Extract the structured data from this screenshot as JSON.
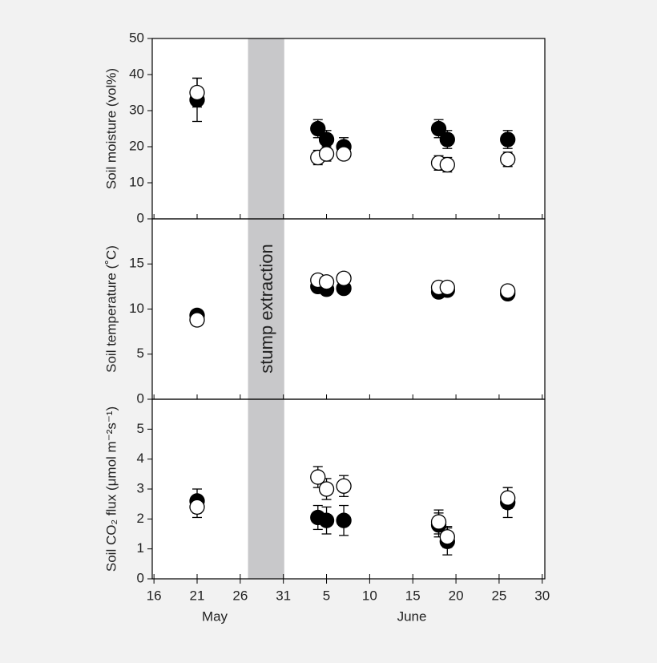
{
  "x_axis": {
    "xlim": [
      135.8,
      181.3
    ],
    "xticks": [
      {
        "value": 136,
        "label": "16"
      },
      {
        "value": 141,
        "label": "21"
      },
      {
        "value": 146,
        "label": "26"
      },
      {
        "value": 151,
        "label": "31"
      },
      {
        "value": 156,
        "label": "5"
      },
      {
        "value": 161,
        "label": "10"
      },
      {
        "value": 166,
        "label": "15"
      },
      {
        "value": 171,
        "label": "20"
      },
      {
        "value": 176,
        "label": "25"
      },
      {
        "value": 181,
        "label": "30"
      }
    ],
    "months": [
      "May",
      "June"
    ]
  },
  "annotation": {
    "text": "stump extraction",
    "span": [
      146.9,
      151.1
    ],
    "color": "#c8c8ca"
  },
  "chart_data": [
    {
      "type": "scatter",
      "ylabel": "Soil moisture (vol%)",
      "ylim": [
        0,
        50
      ],
      "yticks": [
        0,
        10,
        20,
        30,
        40,
        50
      ],
      "x": [
        141,
        155,
        156,
        158,
        169,
        170,
        177
      ],
      "series": [
        {
          "color": "#000000",
          "fill": "#000000",
          "values": [
            33,
            25,
            22,
            20,
            25,
            22,
            22
          ],
          "errors": [
            6,
            2.5,
            2.5,
            2.5,
            2.5,
            2.5,
            2.5
          ]
        },
        {
          "color": "#000000",
          "fill": "#ffffff",
          "values": [
            35,
            17,
            18,
            18,
            15.5,
            15,
            16.5
          ],
          "errors": [
            4,
            2,
            2,
            1.5,
            2,
            2,
            2
          ]
        }
      ]
    },
    {
      "type": "scatter",
      "ylabel": "Soil temperature (˚C)",
      "ylim": [
        0,
        20
      ],
      "yticks": [
        0,
        5,
        10,
        15
      ],
      "x": [
        141,
        155,
        156,
        158,
        169,
        170,
        177
      ],
      "series": [
        {
          "color": "#000000",
          "fill": "#000000",
          "values": [
            9.3,
            12.5,
            12.2,
            12.3,
            11.9,
            12.1,
            11.7
          ]
        },
        {
          "color": "#000000",
          "fill": "#ffffff",
          "values": [
            8.8,
            13.2,
            13.0,
            13.4,
            12.4,
            12.4,
            12.0
          ]
        }
      ]
    },
    {
      "type": "scatter",
      "ylabel": "Soil CO₂ flux (μmol m⁻²s⁻¹)",
      "ylim": [
        0,
        6
      ],
      "yticks": [
        0,
        1,
        2,
        3,
        4,
        5
      ],
      "x": [
        141,
        155,
        156,
        158,
        169,
        170,
        177
      ],
      "series": [
        {
          "color": "#000000",
          "fill": "#000000",
          "values": [
            2.6,
            2.05,
            1.95,
            1.95,
            1.8,
            1.25,
            2.55
          ],
          "errors": [
            0.4,
            0.4,
            0.45,
            0.5,
            0.4,
            0.45,
            0.5
          ]
        },
        {
          "color": "#000000",
          "fill": "#ffffff",
          "values": [
            2.4,
            3.4,
            3.0,
            3.1,
            1.9,
            1.4,
            2.7
          ],
          "errors": [
            0.35,
            0.35,
            0.35,
            0.35,
            0.4,
            0.35,
            0.35
          ]
        }
      ]
    }
  ]
}
